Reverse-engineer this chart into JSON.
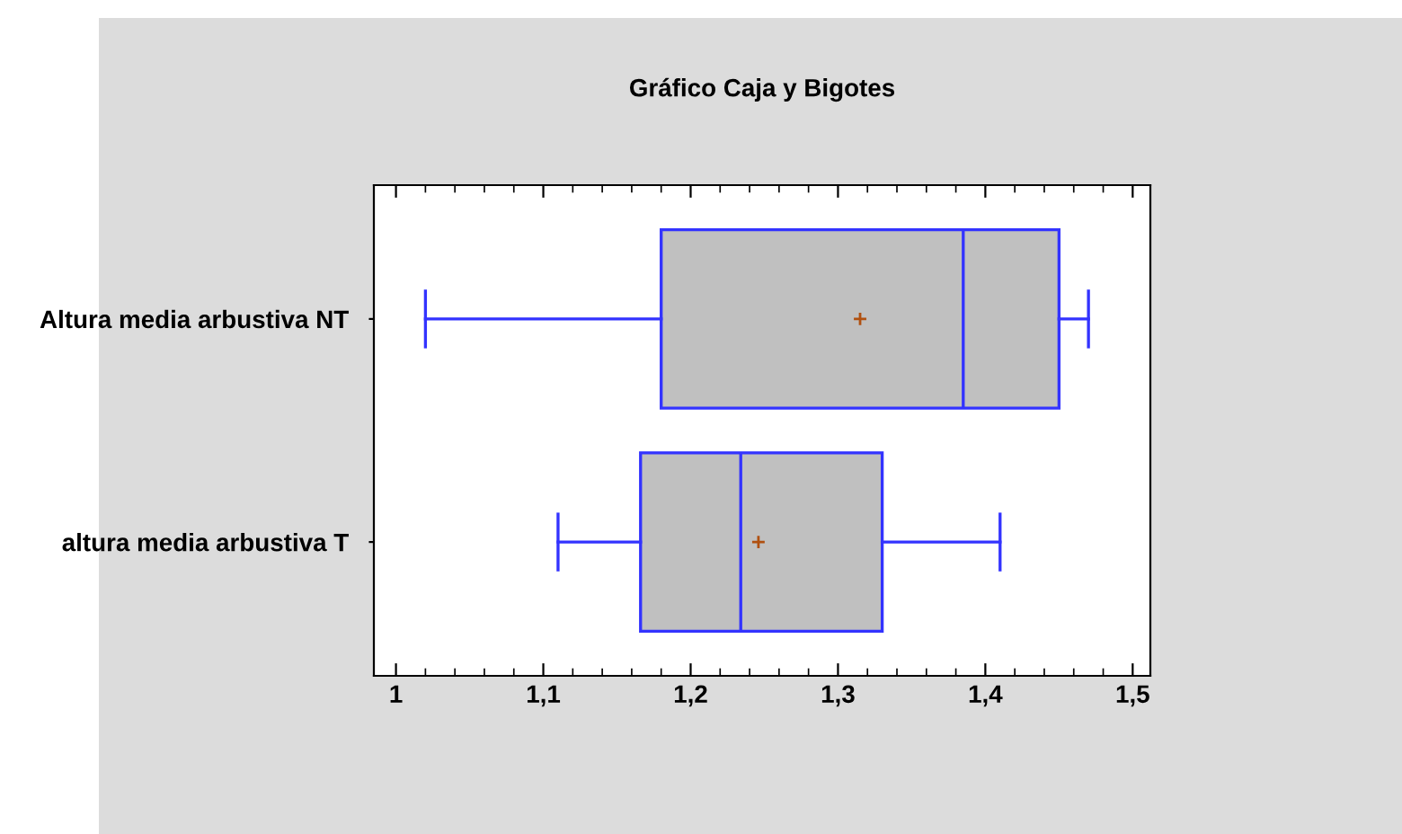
{
  "chart_data": {
    "type": "box",
    "orientation": "horizontal",
    "title": "Gráfico Caja y Bigotes",
    "categories": [
      "Altura media arbustiva NT",
      "altura media arbustiva T"
    ],
    "boxes": [
      {
        "low": 1.02,
        "q1": 1.18,
        "median": 1.385,
        "q3": 1.45,
        "high": 1.47,
        "mean": 1.315
      },
      {
        "low": 1.11,
        "q1": 1.166,
        "median": 1.234,
        "q3": 1.33,
        "high": 1.41,
        "mean": 1.246
      }
    ],
    "color": "#c0c0c0",
    "xlim": [
      0.985,
      1.512
    ],
    "xticks": [
      {
        "value": 1,
        "label": "1"
      },
      {
        "value": 1.1,
        "label": "1,1"
      },
      {
        "value": 1.2,
        "label": "1,2"
      },
      {
        "value": 1.3,
        "label": "1,3"
      },
      {
        "value": 1.4,
        "label": "1,4"
      },
      {
        "value": 1.5,
        "label": "1,5"
      }
    ],
    "grid": false
  }
}
